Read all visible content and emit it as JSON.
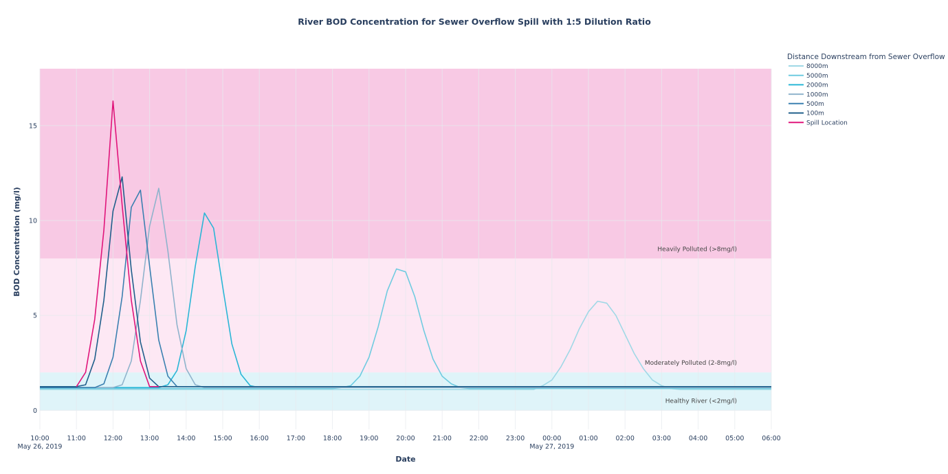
{
  "chart_data": {
    "type": "line",
    "title": "River BOD Concentration for Sewer Overflow Spill with 1:5 Dilution Ratio",
    "xlabel": "Date",
    "ylabel": "BOD Concentration (mg/l)",
    "x_range": [
      "2019-05-26 10:00",
      "2019-05-27 06:00"
    ],
    "ylim": [
      -1,
      18
    ],
    "y_ticks": [
      0,
      5,
      10,
      15
    ],
    "x_ticks": [
      {
        "time": "10:00",
        "date": "May 26, 2019"
      },
      {
        "time": "11:00",
        "date": ""
      },
      {
        "time": "12:00",
        "date": ""
      },
      {
        "time": "13:00",
        "date": ""
      },
      {
        "time": "14:00",
        "date": ""
      },
      {
        "time": "15:00",
        "date": ""
      },
      {
        "time": "16:00",
        "date": ""
      },
      {
        "time": "17:00",
        "date": ""
      },
      {
        "time": "18:00",
        "date": ""
      },
      {
        "time": "19:00",
        "date": ""
      },
      {
        "time": "20:00",
        "date": ""
      },
      {
        "time": "21:00",
        "date": ""
      },
      {
        "time": "22:00",
        "date": ""
      },
      {
        "time": "23:00",
        "date": ""
      },
      {
        "time": "00:00",
        "date": "May 27, 2019"
      },
      {
        "time": "01:00",
        "date": ""
      },
      {
        "time": "02:00",
        "date": ""
      },
      {
        "time": "03:00",
        "date": ""
      },
      {
        "time": "04:00",
        "date": ""
      },
      {
        "time": "05:00",
        "date": ""
      },
      {
        "time": "06:00",
        "date": ""
      }
    ],
    "grid": true,
    "bands": [
      {
        "label": "Healthy River (<2mg/l)",
        "y0": 0,
        "y1": 2,
        "color": "#dff4f9"
      },
      {
        "label": "Moderately Polluted (2-8mg/l)",
        "y0": 2,
        "y1": 8,
        "color": "#fde8f4"
      },
      {
        "label": "Heavily Polluted (>8mg/l)",
        "y0": 8,
        "y1": 18,
        "color": "#f8c9e4"
      }
    ],
    "legend": {
      "title": "Distance Downstream from Sewer Overflow",
      "position": "right"
    },
    "series": [
      {
        "name": "8000m",
        "color": "#9fd8e6",
        "x": [
          "2019-05-26 10:00",
          "2019-05-26 23:30",
          "2019-05-26 23:45",
          "2019-05-27 00:00",
          "2019-05-27 00:15",
          "2019-05-27 00:30",
          "2019-05-27 00:45",
          "2019-05-27 01:00",
          "2019-05-27 01:15",
          "2019-05-27 01:30",
          "2019-05-27 01:45",
          "2019-05-27 02:00",
          "2019-05-27 02:15",
          "2019-05-27 02:30",
          "2019-05-27 02:45",
          "2019-05-27 03:00",
          "2019-05-27 03:15",
          "2019-05-27 03:30",
          "2019-05-27 06:00"
        ],
        "y": [
          1.1,
          1.1,
          1.3,
          1.6,
          2.3,
          3.2,
          4.3,
          5.2,
          5.75,
          5.65,
          5.0,
          4.0,
          3.0,
          2.2,
          1.6,
          1.3,
          1.15,
          1.1,
          1.1
        ]
      },
      {
        "name": "5000m",
        "color": "#6fcbe0",
        "x": [
          "2019-05-26 10:00",
          "2019-05-26 18:00",
          "2019-05-26 18:15",
          "2019-05-26 18:30",
          "2019-05-26 18:45",
          "2019-05-26 19:00",
          "2019-05-26 19:15",
          "2019-05-26 19:30",
          "2019-05-26 19:45",
          "2019-05-26 20:00",
          "2019-05-26 20:15",
          "2019-05-26 20:30",
          "2019-05-26 20:45",
          "2019-05-26 21:00",
          "2019-05-26 21:15",
          "2019-05-26 21:30",
          "2019-05-26 21:45",
          "2019-05-27 06:00"
        ],
        "y": [
          1.15,
          1.15,
          1.2,
          1.3,
          1.8,
          2.8,
          4.4,
          6.3,
          7.45,
          7.3,
          6.0,
          4.2,
          2.7,
          1.8,
          1.4,
          1.2,
          1.15,
          1.15
        ]
      },
      {
        "name": "2000m",
        "color": "#29b6d6",
        "x": [
          "2019-05-26 10:00",
          "2019-05-26 13:15",
          "2019-05-26 13:30",
          "2019-05-26 13:45",
          "2019-05-26 14:00",
          "2019-05-26 14:15",
          "2019-05-26 14:30",
          "2019-05-26 14:45",
          "2019-05-26 15:00",
          "2019-05-26 15:15",
          "2019-05-26 15:30",
          "2019-05-26 15:45",
          "2019-05-26 16:00",
          "2019-05-27 06:00"
        ],
        "y": [
          1.2,
          1.2,
          1.35,
          2.1,
          4.2,
          7.6,
          10.4,
          9.6,
          6.5,
          3.5,
          1.9,
          1.3,
          1.2,
          1.2
        ]
      },
      {
        "name": "1000m",
        "color": "#8fb3cc",
        "x": [
          "2019-05-26 10:00",
          "2019-05-26 12:00",
          "2019-05-26 12:15",
          "2019-05-26 12:30",
          "2019-05-26 12:45",
          "2019-05-26 13:00",
          "2019-05-26 13:15",
          "2019-05-26 13:30",
          "2019-05-26 13:45",
          "2019-05-26 14:00",
          "2019-05-26 14:15",
          "2019-05-26 14:30",
          "2019-05-27 06:00"
        ],
        "y": [
          1.2,
          1.2,
          1.35,
          2.6,
          5.8,
          9.7,
          11.7,
          8.4,
          4.5,
          2.2,
          1.35,
          1.2,
          1.2
        ]
      },
      {
        "name": "500m",
        "color": "#3a80b0",
        "x": [
          "2019-05-26 10:00",
          "2019-05-26 11:30",
          "2019-05-26 11:45",
          "2019-05-26 12:00",
          "2019-05-26 12:15",
          "2019-05-26 12:30",
          "2019-05-26 12:45",
          "2019-05-26 13:00",
          "2019-05-26 13:15",
          "2019-05-26 13:30",
          "2019-05-26 13:45",
          "2019-05-27 06:00"
        ],
        "y": [
          1.2,
          1.2,
          1.4,
          2.8,
          6.0,
          10.7,
          11.6,
          7.6,
          3.7,
          1.8,
          1.25,
          1.25
        ]
      },
      {
        "name": "100m",
        "color": "#1f5f8b",
        "x": [
          "2019-05-26 10:00",
          "2019-05-26 11:00",
          "2019-05-26 11:15",
          "2019-05-26 11:30",
          "2019-05-26 11:45",
          "2019-05-26 12:00",
          "2019-05-26 12:15",
          "2019-05-26 12:30",
          "2019-05-26 12:45",
          "2019-05-26 13:00",
          "2019-05-26 13:15",
          "2019-05-27 06:00"
        ],
        "y": [
          1.25,
          1.25,
          1.35,
          2.7,
          5.8,
          10.5,
          12.3,
          7.4,
          3.6,
          1.7,
          1.25,
          1.25
        ]
      },
      {
        "name": "Spill Location",
        "color": "#e0147a",
        "x": [
          "2019-05-26 11:00",
          "2019-05-26 11:15",
          "2019-05-26 11:30",
          "2019-05-26 11:45",
          "2019-05-26 12:00",
          "2019-05-26 12:15",
          "2019-05-26 12:30",
          "2019-05-26 12:45",
          "2019-05-26 13:00",
          "2019-05-26 13:15"
        ],
        "y": [
          1.25,
          2.0,
          4.8,
          9.5,
          16.3,
          10.8,
          5.8,
          2.6,
          1.25,
          1.25
        ]
      }
    ]
  }
}
